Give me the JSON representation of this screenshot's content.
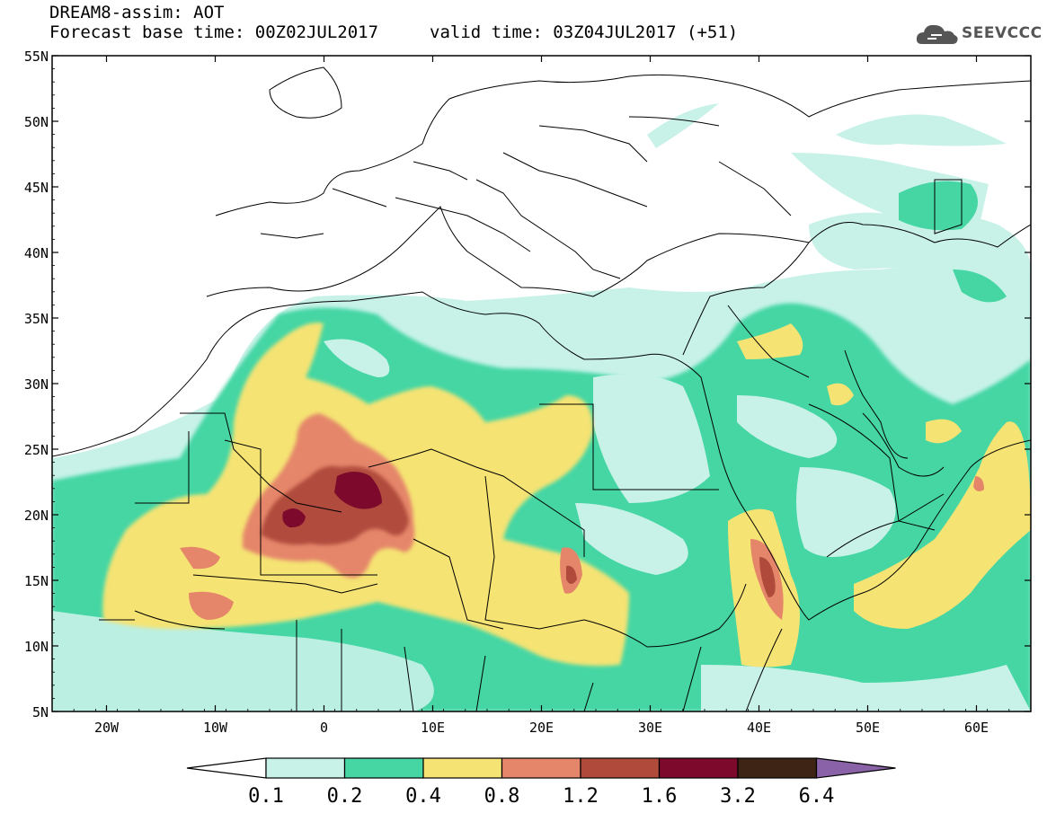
{
  "header": {
    "title": "DREAM8-assim: AOT",
    "base_label": "Forecast base time:",
    "base_value": "00Z02JUL2017",
    "valid_label": "valid time:",
    "valid_value": "03Z04JUL2017 (+51)"
  },
  "logo": {
    "text": "SEEVCCC",
    "icon": "cloud-icon"
  },
  "map": {
    "lat_ticks": [
      "55N",
      "50N",
      "45N",
      "40N",
      "35N",
      "30N",
      "25N",
      "20N",
      "15N",
      "10N",
      "5N"
    ],
    "lon_ticks": [
      "20W",
      "10W",
      "0",
      "10E",
      "20E",
      "30E",
      "40E",
      "50E",
      "60E"
    ],
    "lat_values": [
      55,
      50,
      45,
      40,
      35,
      30,
      25,
      20,
      15,
      10,
      5
    ],
    "lon_values": [
      -20,
      -10,
      0,
      10,
      20,
      30,
      40,
      50,
      60
    ],
    "extent": {
      "lon": [
        -25,
        65
      ],
      "lat": [
        5,
        55
      ]
    }
  },
  "colorbar": {
    "labels": [
      "0.1",
      "0.2",
      "0.4",
      "0.8",
      "1.2",
      "1.6",
      "3.2",
      "6.4"
    ],
    "colors": [
      "#ffffff",
      "#c8f2e8",
      "#45d6a4",
      "#f5e373",
      "#e5866a",
      "#b04b3c",
      "#7d0a2c",
      "#3e2414",
      "#8a62a8"
    ]
  }
}
